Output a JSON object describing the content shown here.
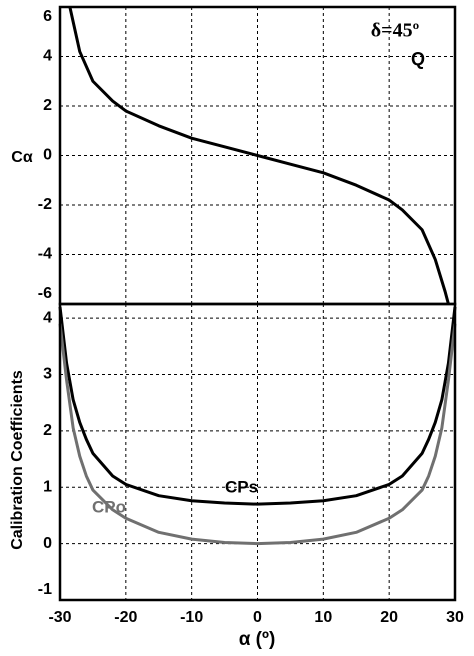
{
  "chart_data": [
    {
      "type": "line",
      "ylabel": "Cα",
      "annotations": [
        "δ=45º",
        "Q"
      ],
      "x": [
        -28.5,
        -27,
        -25,
        -22,
        -20,
        -15,
        -10,
        -5,
        0,
        5,
        10,
        15,
        20,
        22,
        25,
        27,
        28.5,
        29
      ],
      "series": [
        {
          "name": null,
          "color": "#000000",
          "values": [
            6,
            4.2,
            3,
            2.2,
            1.8,
            1.2,
            0.7,
            0.35,
            0,
            -0.35,
            -0.7,
            -1.2,
            -1.8,
            -2.2,
            -3,
            -4.2,
            -5.5,
            -6
          ]
        }
      ],
      "xlim": [
        -30,
        30
      ],
      "xticks": [
        -30,
        -20,
        -10,
        0,
        10,
        20,
        30
      ],
      "ylim": [
        -6,
        6
      ],
      "yticks": [
        -6,
        -4,
        -2,
        0,
        2,
        4,
        6
      ],
      "grid": true
    },
    {
      "type": "line",
      "ylabel": "Calibration Coefficients",
      "xlabel": "α (º)",
      "x": [
        -30,
        -29,
        -28,
        -27,
        -26,
        -25,
        -22,
        -20,
        -15,
        -10,
        -5,
        0,
        5,
        10,
        15,
        20,
        22,
        25,
        26,
        27,
        28,
        29,
        30
      ],
      "series": [
        {
          "name": "CPs",
          "color": "#000000",
          "values": [
            4.2,
            3.2,
            2.55,
            2.15,
            1.85,
            1.6,
            1.2,
            1.05,
            0.85,
            0.76,
            0.72,
            0.7,
            0.72,
            0.76,
            0.85,
            1.05,
            1.2,
            1.6,
            1.85,
            2.15,
            2.55,
            3.2,
            4.2
          ]
        },
        {
          "name": "CPo",
          "color": "#707070",
          "values": [
            3.9,
            2.9,
            2.05,
            1.55,
            1.2,
            0.95,
            0.6,
            0.45,
            0.2,
            0.08,
            0.02,
            0,
            0.02,
            0.08,
            0.2,
            0.45,
            0.6,
            0.95,
            1.2,
            1.55,
            2.05,
            2.9,
            3.9
          ]
        }
      ],
      "xlim": [
        -30,
        30
      ],
      "xticks": [
        -30,
        -20,
        -10,
        0,
        10,
        20,
        30
      ],
      "ylim": [
        -1,
        4.25
      ],
      "yticks": [
        -1,
        0,
        1,
        2,
        3,
        4
      ],
      "grid": true
    }
  ]
}
